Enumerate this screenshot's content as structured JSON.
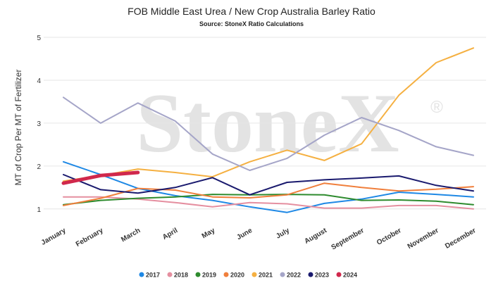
{
  "chart_data": {
    "type": "line",
    "title": "FOB Middle East Urea / New Crop Australia Barley Ratio",
    "subtitle": "Source: StoneX Ratio Calculations",
    "y_label": "MT of Crop Per MT of Fertilizer",
    "watermark": "StoneX",
    "watermark_mark": "®",
    "categories": [
      "January",
      "February",
      "March",
      "April",
      "May",
      "June",
      "July",
      "August",
      "September",
      "October",
      "November",
      "December"
    ],
    "ylim": [
      0.8,
      5
    ],
    "yticks": [
      1,
      2,
      3,
      4,
      5
    ],
    "grid": true,
    "legend": "bottom",
    "series": [
      {
        "name": "2017",
        "color": "#1e88e5",
        "values": [
          2.1,
          1.8,
          1.48,
          1.31,
          1.2,
          1.05,
          0.92,
          1.13,
          1.23,
          1.39,
          1.34,
          1.28
        ]
      },
      {
        "name": "2018",
        "color": "#e58fa0",
        "values": [
          1.28,
          1.28,
          1.23,
          1.15,
          1.05,
          1.15,
          1.12,
          1.02,
          1.02,
          1.08,
          1.08,
          1.0
        ]
      },
      {
        "name": "2019",
        "color": "#2e8b2e",
        "values": [
          1.1,
          1.2,
          1.25,
          1.28,
          1.34,
          1.33,
          1.34,
          1.33,
          1.2,
          1.21,
          1.18,
          1.1
        ]
      },
      {
        "name": "2020",
        "color": "#f07f3c",
        "values": [
          1.08,
          1.25,
          1.48,
          1.44,
          1.28,
          1.26,
          1.33,
          1.6,
          1.5,
          1.42,
          1.46,
          1.52
        ]
      },
      {
        "name": "2021",
        "color": "#f5b041",
        "values": [
          1.65,
          1.78,
          1.93,
          1.85,
          1.75,
          2.1,
          2.37,
          2.13,
          2.52,
          3.65,
          4.41,
          4.75
        ]
      },
      {
        "name": "2022",
        "color": "#a5a5c8",
        "values": [
          3.6,
          3.0,
          3.47,
          3.05,
          2.28,
          1.9,
          2.18,
          2.72,
          3.13,
          2.83,
          2.45,
          2.25
        ]
      },
      {
        "name": "2023",
        "color": "#1a1a6e",
        "values": [
          1.8,
          1.45,
          1.37,
          1.5,
          1.73,
          1.33,
          1.62,
          1.68,
          1.72,
          1.77,
          1.55,
          1.42
        ]
      },
      {
        "name": "2024",
        "color": "#d0284c",
        "values": [
          1.6,
          1.78,
          1.85,
          null,
          null,
          null,
          null,
          null,
          null,
          null,
          null,
          null
        ]
      }
    ]
  }
}
